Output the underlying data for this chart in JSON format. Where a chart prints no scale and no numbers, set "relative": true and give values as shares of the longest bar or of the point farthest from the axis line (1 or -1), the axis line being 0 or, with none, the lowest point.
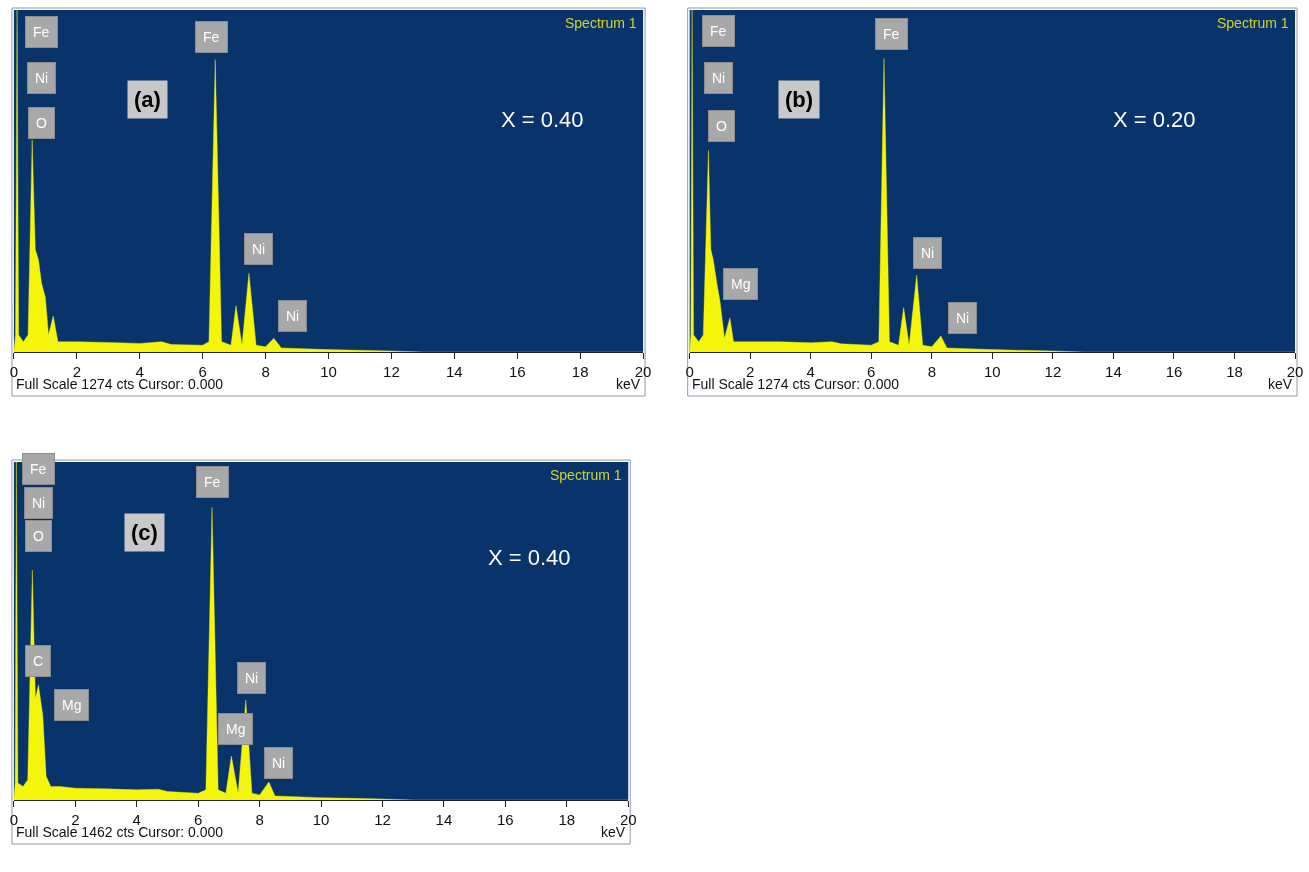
{
  "chart_data": [
    {
      "type": "area",
      "title": "Spectrum 1",
      "xlabel": "keV",
      "relative": true,
      "grid": false,
      "xlim": [
        0,
        20
      ],
      "xticks": [
        0,
        2,
        4,
        6,
        8,
        10,
        12,
        14,
        16,
        18,
        20
      ],
      "x": [
        0,
        0.05,
        0.1,
        0.15,
        0.3,
        0.45,
        0.58,
        0.68,
        0.78,
        0.88,
        1.0,
        1.1,
        1.25,
        1.4,
        2,
        3,
        4,
        4.7,
        5,
        6,
        6.2,
        6.4,
        6.6,
        6.9,
        7.06,
        7.25,
        7.47,
        7.7,
        8.0,
        8.26,
        8.5,
        9,
        10,
        11,
        12,
        13,
        20
      ],
      "series": [
        {
          "color": "#f5f50a",
          "values": [
            0,
            0.05,
            1.0,
            0.05,
            0.03,
            0.05,
            0.62,
            0.3,
            0.27,
            0.2,
            0.16,
            0.05,
            0.105,
            0.03,
            0.03,
            0.028,
            0.025,
            0.03,
            0.022,
            0.02,
            0.03,
            0.855,
            0.03,
            0.02,
            0.135,
            0.02,
            0.23,
            0.02,
            0.015,
            0.04,
            0.012,
            0.01,
            0.007,
            0.005,
            0.003,
            0,
            0
          ]
        }
      ],
      "annotations": [
        "(a)",
        "X = 0.40",
        "Full Scale 1274 cts Cursor: 0.000",
        {
          "text": "Fe",
          "x": 0.88,
          "y": 0.935
        },
        {
          "text": "Ni",
          "x": 0.88,
          "y": 0.8
        },
        {
          "text": "O",
          "x": 0.88,
          "y": 0.67
        },
        {
          "text": "Fe",
          "x": 6.29,
          "y": 0.92
        },
        {
          "text": "Ni",
          "x": 7.78,
          "y": 0.3
        },
        {
          "text": "Ni",
          "x": 8.85,
          "y": 0.105
        }
      ]
    },
    {
      "type": "area",
      "title": "Spectrum 1",
      "xlabel": "keV",
      "relative": true,
      "grid": false,
      "xlim": [
        0,
        20
      ],
      "xticks": [
        0,
        2,
        4,
        6,
        8,
        10,
        12,
        14,
        16,
        18,
        20
      ],
      "x": [
        0,
        0.04,
        0.08,
        0.13,
        0.3,
        0.45,
        0.62,
        0.7,
        0.78,
        0.9,
        1.0,
        1.15,
        1.33,
        1.45,
        2,
        3,
        4,
        4.7,
        5,
        6,
        6.25,
        6.42,
        6.6,
        6.9,
        7.07,
        7.25,
        7.5,
        7.7,
        8.0,
        8.3,
        8.5,
        9,
        10,
        11,
        12,
        13,
        20
      ],
      "series": [
        {
          "color": "#f5f50a",
          "values": [
            0,
            0.05,
            1.0,
            0.05,
            0.03,
            0.05,
            0.59,
            0.3,
            0.27,
            0.2,
            0.15,
            0.04,
            0.1,
            0.03,
            0.03,
            0.03,
            0.027,
            0.03,
            0.024,
            0.02,
            0.03,
            0.858,
            0.03,
            0.02,
            0.13,
            0.02,
            0.225,
            0.02,
            0.015,
            0.047,
            0.012,
            0.01,
            0.007,
            0.005,
            0.003,
            0,
            0
          ]
        }
      ],
      "annotations": [
        "(b)",
        "X = 0.20",
        "Full Scale 1274 cts Cursor: 0.000",
        {
          "text": "Fe",
          "x": 0.94,
          "y": 0.94
        },
        {
          "text": "Ni",
          "x": 0.94,
          "y": 0.8
        },
        {
          "text": "O",
          "x": 1.05,
          "y": 0.66
        },
        {
          "text": "Mg",
          "x": 1.69,
          "y": 0.2
        },
        {
          "text": "Fe",
          "x": 6.67,
          "y": 0.93
        },
        {
          "text": "Ni",
          "x": 7.86,
          "y": 0.29
        },
        {
          "text": "Ni",
          "x": 9.0,
          "y": 0.1
        }
      ]
    },
    {
      "type": "area",
      "title": "Spectrum 1",
      "xlabel": "keV",
      "relative": true,
      "grid": false,
      "xlim": [
        0,
        20
      ],
      "xticks": [
        0,
        2,
        4,
        6,
        8,
        10,
        12,
        14,
        16,
        18,
        20
      ],
      "x": [
        0,
        0.04,
        0.08,
        0.13,
        0.3,
        0.45,
        0.6,
        0.7,
        0.8,
        0.94,
        1.05,
        1.2,
        1.5,
        2,
        3,
        4,
        4.7,
        5,
        6,
        6.25,
        6.45,
        6.65,
        6.9,
        7.08,
        7.3,
        7.55,
        7.75,
        8.0,
        8.3,
        8.5,
        9,
        10,
        11,
        12,
        13,
        20
      ],
      "series": [
        {
          "color": "#f5f50a",
          "values": [
            0,
            0.05,
            1.0,
            0.05,
            0.04,
            0.06,
            0.68,
            0.3,
            0.34,
            0.25,
            0.07,
            0.04,
            0.04,
            0.035,
            0.033,
            0.03,
            0.032,
            0.025,
            0.02,
            0.03,
            0.866,
            0.03,
            0.02,
            0.13,
            0.02,
            0.296,
            0.02,
            0.015,
            0.053,
            0.012,
            0.01,
            0.007,
            0.005,
            0.003,
            0,
            0
          ]
        }
      ],
      "annotations": [
        "(c)",
        "X = 0.40",
        "Full Scale 1462 cts Cursor: 0.000",
        {
          "text": "Fe",
          "x": 0.8,
          "y": 0.98
        },
        {
          "text": "Ni",
          "x": 0.8,
          "y": 0.88
        },
        {
          "text": "O",
          "x": 0.8,
          "y": 0.78
        },
        {
          "text": "C",
          "x": 0.8,
          "y": 0.41
        },
        {
          "text": "Mg",
          "x": 1.87,
          "y": 0.28
        },
        {
          "text": "Fe",
          "x": 6.45,
          "y": 0.94
        },
        {
          "text": "Ni",
          "x": 7.73,
          "y": 0.36
        },
        {
          "text": "Mg",
          "x": 7.2,
          "y": 0.21
        },
        {
          "text": "Ni",
          "x": 8.63,
          "y": 0.11
        }
      ]
    }
  ]
}
